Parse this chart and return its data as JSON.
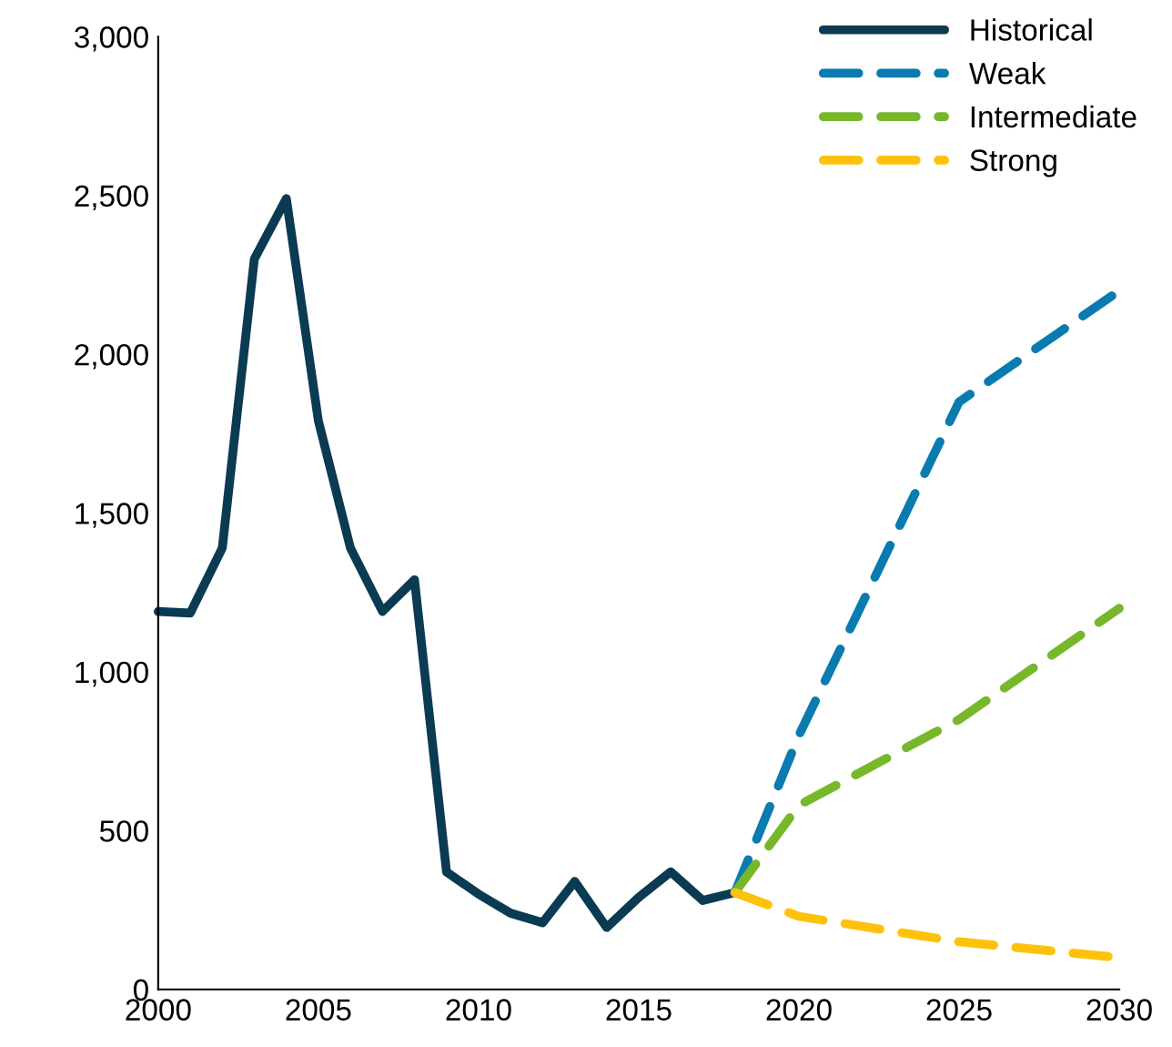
{
  "chart_data": {
    "type": "line",
    "xlim": [
      2000,
      2030
    ],
    "xticks": [
      2000,
      2005,
      2010,
      2015,
      2020,
      2025,
      2030
    ],
    "ylim": [
      0,
      3000
    ],
    "yticks": [
      0,
      {
        "value": 500,
        "label": "500"
      },
      {
        "value": 1000,
        "label": "1,000"
      },
      {
        "value": 1500,
        "label": "1,500"
      },
      {
        "value": 2000,
        "label": "2,000"
      },
      {
        "value": 2500,
        "label": "2,500"
      },
      {
        "value": 3000,
        "label": "3,000"
      }
    ],
    "grid": false,
    "legend": "top right",
    "marker": "none",
    "series": [
      {
        "name": "Historical",
        "color": "#0b3a53",
        "line_style": "solid",
        "x": [
          2000,
          2001,
          2002,
          2003,
          2004,
          2005,
          2006,
          2007,
          2008,
          2009,
          2010,
          2011,
          2012,
          2013,
          2014,
          2015,
          2016,
          2017,
          2018
        ],
        "values": [
          1190,
          1185,
          1390,
          2300,
          2490,
          1790,
          1390,
          1190,
          1290,
          370,
          300,
          240,
          210,
          340,
          195,
          290,
          370,
          280,
          305
        ]
      },
      {
        "name": "Weak",
        "color": "#0a7bb0",
        "line_style": "dashed",
        "x": [
          2018,
          2020,
          2025,
          2030
        ],
        "values": [
          305,
          800,
          1850,
          2200
        ]
      },
      {
        "name": "Intermediate",
        "color": "#76b82a",
        "line_style": "dashed",
        "x": [
          2018,
          2020,
          2025,
          2030
        ],
        "values": [
          305,
          580,
          850,
          1200
        ]
      },
      {
        "name": "Strong",
        "color": "#fec20d",
        "line_style": "dashed",
        "x": [
          2018,
          2020,
          2025,
          2030
        ],
        "values": [
          305,
          230,
          150,
          100
        ]
      }
    ]
  }
}
